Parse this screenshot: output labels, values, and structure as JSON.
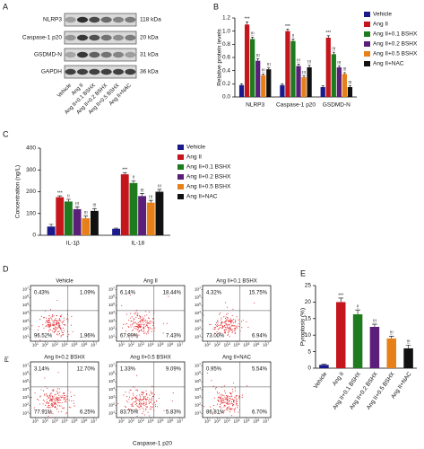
{
  "blot": {
    "panel": "A",
    "rows": [
      {
        "name": "NLRP3",
        "size": "118 kDa"
      },
      {
        "name": "Caspase-1 p20",
        "size": "20 kDa"
      },
      {
        "name": "GSDMD-N",
        "size": "31 kDa"
      },
      {
        "name": "GAPDH",
        "size": "36 kDa"
      }
    ],
    "lanes": [
      "Vehicle",
      "Ang II",
      "Ang II+0.1 BSHX",
      "Ang II+0.2 BSHX",
      "Ang II+0.5 BSHX",
      "Ang II+NAC"
    ]
  },
  "chart_data": [
    {
      "type": "bar",
      "panel": "B",
      "ylabel": "Relative protein levels",
      "categories": [
        "NLRP3",
        "Caspase-1 p20",
        "GSDMD-N"
      ],
      "ylim": [
        0,
        1.2
      ],
      "yticks": [
        {
          "value": 0,
          "label": "0.0"
        },
        {
          "value": 0.2,
          "label": "0.2"
        },
        {
          "value": 0.4,
          "label": "0.4"
        },
        {
          "value": 0.6,
          "label": "0.6"
        },
        {
          "value": 0.8,
          "label": "0.8"
        },
        {
          "value": 1,
          "label": "1.0"
        },
        {
          "value": 1.2,
          "label": "1.2"
        }
      ],
      "series": [
        {
          "name": "Vehicle",
          "color": "#1a1a8c",
          "values": [
            0.18,
            0.18,
            0.15
          ],
          "errors": [
            0.02,
            0.02,
            0.02
          ]
        },
        {
          "name": "Ang II",
          "color": "#c4161c",
          "values": [
            1.1,
            1.0,
            0.9
          ],
          "errors": [
            0.04,
            0.03,
            0.03
          ],
          "significance": [
            "***",
            "***",
            "***"
          ]
        },
        {
          "name": "Ang II+0.1 BSHX",
          "color": "#1e7b1e",
          "values": [
            0.88,
            0.85,
            0.65
          ],
          "errors": [
            0.03,
            0.03,
            0.03
          ],
          "significance": [
            "!!!",
            "!!",
            "!!!"
          ]
        },
        {
          "name": "Ang II+0.2 BSHX",
          "color": "#5b1f7a",
          "values": [
            0.55,
            0.47,
            0.45
          ],
          "errors": [
            0.03,
            0.03,
            0.02
          ],
          "significance": [
            "!!!",
            "!!!",
            "!!!"
          ]
        },
        {
          "name": "Ang II+0.5 BSHX",
          "color": "#e8801a",
          "values": [
            0.33,
            0.3,
            0.35
          ],
          "errors": [
            0.02,
            0.02,
            0.02
          ],
          "significance": [
            "!!!",
            "!!!",
            "!!!"
          ]
        },
        {
          "name": "Ang II+NAC",
          "color": "#111111",
          "values": [
            0.42,
            0.45,
            0.15
          ],
          "errors": [
            0.02,
            0.03,
            0.02
          ],
          "significance": [
            "!!!",
            "!!!",
            "!!!"
          ]
        }
      ]
    },
    {
      "type": "bar",
      "panel": "C",
      "ylabel": "Concentration (ng/L)",
      "categories": [
        "IL-1β",
        "IL-18"
      ],
      "ylim": [
        0,
        400
      ],
      "yticks": [
        0,
        100,
        200,
        300,
        400
      ],
      "series": [
        {
          "name": "Vehicle",
          "color": "#1a1a8c",
          "values": [
            40,
            30
          ],
          "errors": [
            10,
            3
          ]
        },
        {
          "name": "Ang II",
          "color": "#c4161c",
          "values": [
            175,
            280
          ],
          "errors": [
            6,
            8
          ],
          "significance": [
            "***",
            "***"
          ]
        },
        {
          "name": "Ang II+0.1 BSHX",
          "color": "#1e7b1e",
          "values": [
            155,
            240
          ],
          "errors": [
            10,
            10
          ],
          "significance": [
            "!!",
            "!!"
          ]
        },
        {
          "name": "Ang II+0.2 BSHX",
          "color": "#5b1f7a",
          "values": [
            120,
            180
          ],
          "errors": [
            10,
            12
          ],
          "significance": [
            "!!!",
            "!!!"
          ]
        },
        {
          "name": "Ang II+0.5 BSHX",
          "color": "#e8801a",
          "values": [
            78,
            150
          ],
          "errors": [
            10,
            10
          ],
          "significance": [
            "!!!",
            "!!!"
          ]
        },
        {
          "name": "Ang II+NAC",
          "color": "#111111",
          "values": [
            112,
            200
          ],
          "errors": [
            10,
            10
          ],
          "significance": [
            "!!!",
            "!!!"
          ]
        }
      ]
    },
    {
      "type": "bar",
      "panel": "E",
      "ylabel": "Pyroptosis (%)",
      "categories": [
        "Vehicle",
        "Ang II",
        "Ang II+0.1 BSHX",
        "Ang II+0.2 BSHX",
        "Ang II+0.5 BSHX",
        "Ang II+NAC"
      ],
      "values": [
        1,
        20,
        16.3,
        12.5,
        9,
        6
      ],
      "errors": [
        0.2,
        1.2,
        1.3,
        0.8,
        0.7,
        1.0
      ],
      "colors": [
        "#1a1a8c",
        "#c4161c",
        "#1e7b1e",
        "#5b1f7a",
        "#e8801a",
        "#111111"
      ],
      "significance": [
        null,
        "***",
        "!!",
        "!!!",
        "!!!",
        "!!!"
      ],
      "ylim": [
        0,
        25
      ],
      "yticks": [
        0,
        5,
        10,
        15,
        20,
        25
      ]
    }
  ],
  "flow": {
    "panel": "D",
    "xlabel": "Caspase-1 p20",
    "ylabel": "PI",
    "tick_base": "10",
    "tick_exponents": [
      "1",
      "2",
      "3",
      "4",
      "5",
      "6",
      "7"
    ],
    "plots": [
      {
        "title": "Vehicle",
        "quadrants": [
          "0.43%",
          "1.09%",
          "96.52%",
          "1.96%"
        ]
      },
      {
        "title": "Ang II",
        "quadrants": [
          "6.14%",
          "18.44%",
          "67.99%",
          "7.43%"
        ]
      },
      {
        "title": "Ang II+0.1 BSHX",
        "quadrants": [
          "4.32%",
          "15.75%",
          "73.00%",
          "6.94%"
        ]
      },
      {
        "title": "Ang II+0.2 BSHX",
        "quadrants": [
          "3.14%",
          "12.70%",
          "77.91%",
          "6.25%"
        ]
      },
      {
        "title": "Ang II+0.5 BSHX",
        "quadrants": [
          "1.33%",
          "9.09%",
          "83.75%",
          "5.83%"
        ]
      },
      {
        "title": "Ang II+NAC",
        "quadrants": [
          "0.95%",
          "5.54%",
          "86.81%",
          "6.70%"
        ]
      }
    ]
  }
}
